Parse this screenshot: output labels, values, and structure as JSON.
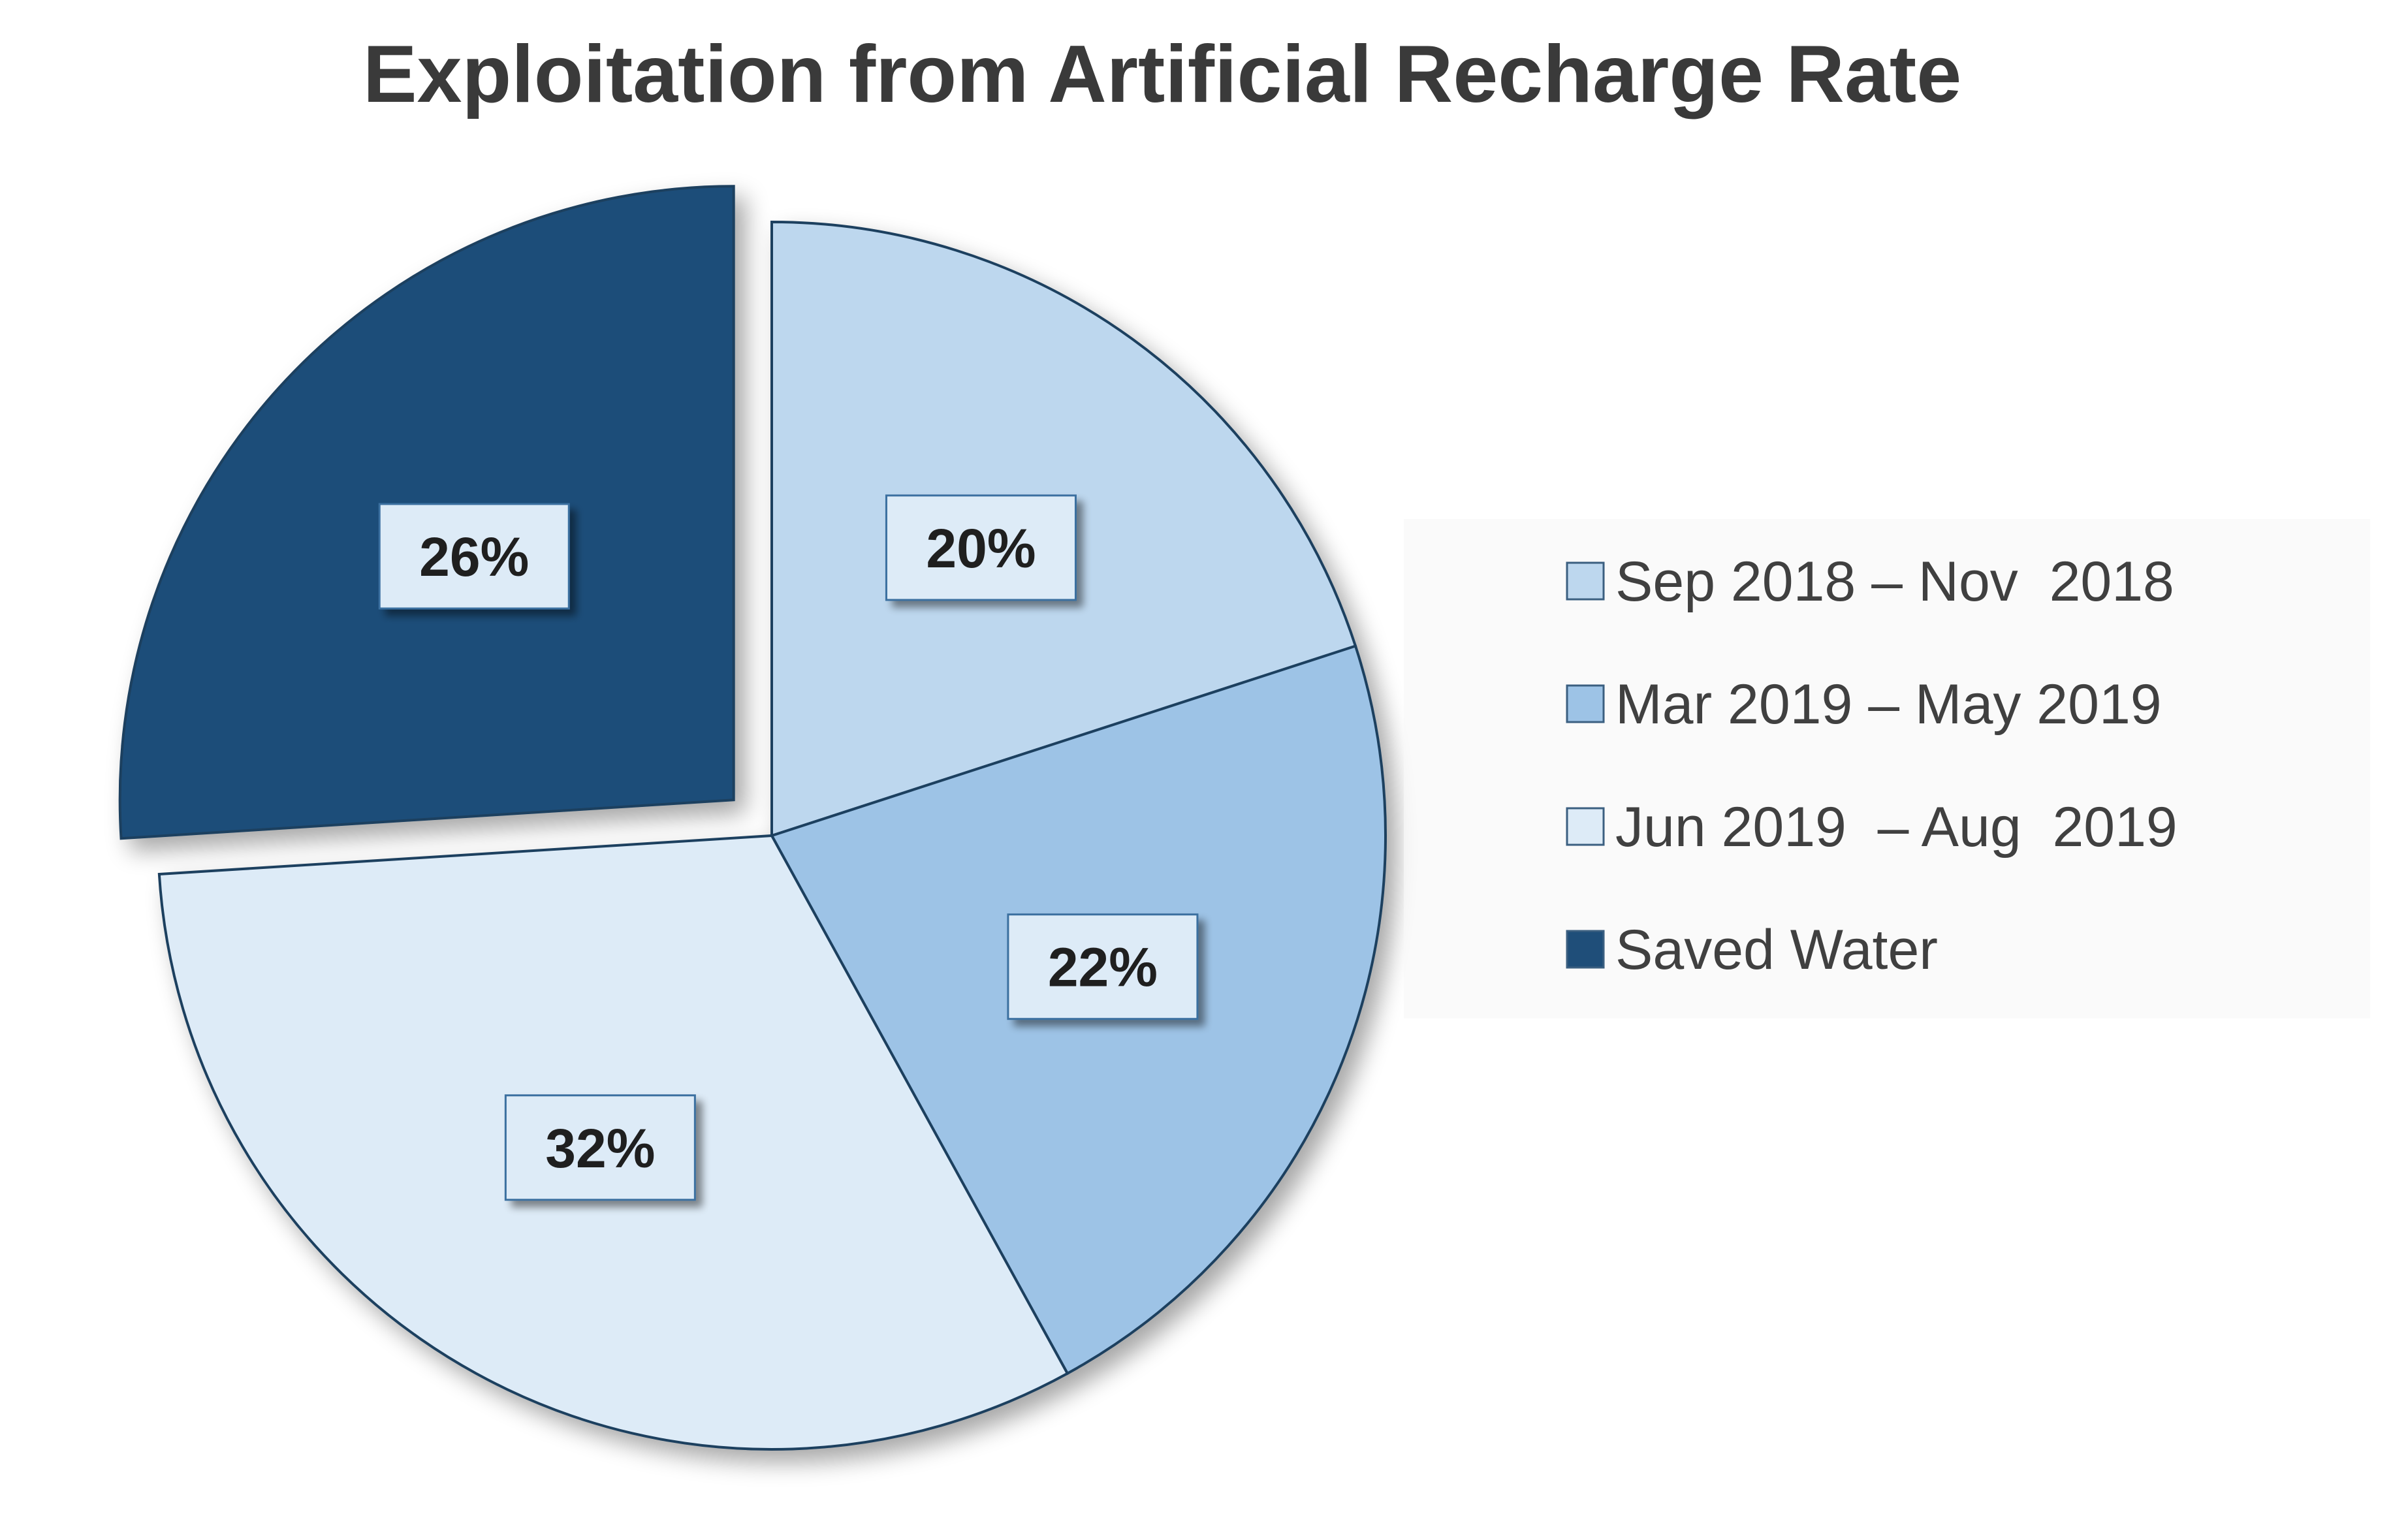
{
  "chart_data": {
    "type": "pie",
    "title": "Exploitation from Artificial Recharge Rate",
    "start_angle_deg": 0,
    "direction": "clockwise",
    "exploded_slice": "Saved Water",
    "slices": [
      {
        "name": "Sep 2018 – Nov 2018",
        "legend_label": "Sep 2018 – Nov  2018",
        "value": 20,
        "label": "20%",
        "color": "#bdd7ee"
      },
      {
        "name": "Mar 2019 – May 2019",
        "legend_label": "Mar 2019 – May 2019",
        "value": 22,
        "label": "22%",
        "color": "#9dc3e6"
      },
      {
        "name": "Jun 2019 – Aug 2019",
        "legend_label": "Jun 2019  – Aug  2019",
        "value": 32,
        "label": "32%",
        "color": "#ddebf7"
      },
      {
        "name": "Saved Water",
        "legend_label": "Saved Water",
        "value": 26,
        "label": "26%",
        "color": "#1f4e79"
      }
    ],
    "legend_position": "right",
    "slice_outline_color": "#1f3f5f",
    "label_box_color": "#ddebf7"
  }
}
